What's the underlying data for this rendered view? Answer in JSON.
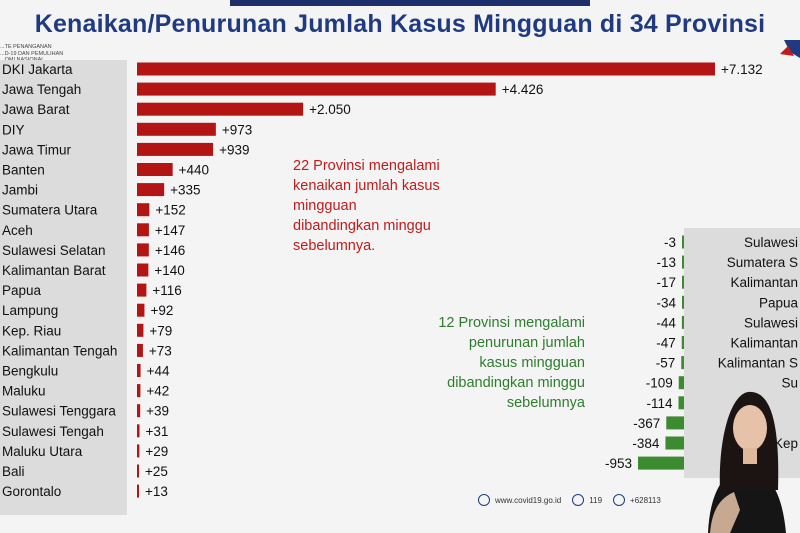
{
  "title": "Kenaikan/Penurunan Jumlah Kasus Mingguan di 34 Provinsi",
  "org_text": [
    "...TE PENANGANAN",
    "...D-19 DAN PEMULIHAN",
    "...OMI NASIONAL"
  ],
  "notes": {
    "increase": [
      "22 Provinsi mengalami",
      "kenaikan jumlah kasus",
      "mingguan",
      "dibandingkan minggu",
      "sebelumnya."
    ],
    "decrease": [
      "12 Provinsi mengalami",
      "penurunan jumlah",
      "kasus mingguan",
      "dibandingkan minggu",
      "sebelumnya"
    ]
  },
  "footer": {
    "website": "www.covid19.go.id",
    "hotline": "119",
    "phone": "+628113"
  },
  "colors": {
    "increase": "#b31515",
    "decrease": "#3d8b30",
    "title": "#1f3a80"
  },
  "chart_data": [
    {
      "type": "bar",
      "orientation": "horizontal",
      "categories": [
        "DKI Jakarta",
        "Jawa Tengah",
        "Jawa Barat",
        "DIY",
        "Jawa Timur",
        "Banten",
        "Jambi",
        "Sumatera Utara",
        "Aceh",
        "Sulawesi Selatan",
        "Kalimantan Barat",
        "Papua",
        "Lampung",
        "Kep. Riau",
        "Kalimantan Tengah",
        "Bengkulu",
        "Maluku",
        "Sulawesi Tenggara",
        "Sulawesi Tengah",
        "Maluku Utara",
        "Bali",
        "Gorontalo"
      ],
      "category_labels_shown": [
        "DKI Jakarta",
        "Jawa Tengah",
        "Jawa Barat",
        "DIY",
        "Jawa Timur",
        "Banten",
        "Jambi",
        "Sumatera Utara",
        "Aceh",
        "Sulawesi Selatan",
        "Kalimantan Barat",
        "Papua",
        "Lampung",
        "Kep. Riau",
        "Kalimantan Tengah",
        "Bengkulu",
        "Maluku",
        "Sulawesi Tenggara",
        "Sulawesi Tengah",
        "Maluku Utara",
        "Bali",
        "Gorontalo"
      ],
      "values": [
        7132,
        4426,
        2050,
        973,
        939,
        440,
        335,
        152,
        147,
        146,
        140,
        116,
        92,
        79,
        73,
        44,
        42,
        39,
        31,
        29,
        25,
        13
      ],
      "value_labels": [
        "+7.132",
        "+4.426",
        "+2.050",
        "+973",
        "+939",
        "+440",
        "+335",
        "+152",
        "+147",
        "+146",
        "+140",
        "+116",
        "+92",
        "+79",
        "+73",
        "+44",
        "+42",
        "+39",
        "+31",
        "+29",
        "+25",
        "+13"
      ]
    },
    {
      "type": "bar",
      "orientation": "horizontal",
      "category_labels_shown": [
        "Sulawesi",
        "Sumatera S",
        "Kalimantan",
        "Papua",
        "Sulawesi",
        "Kalimantan",
        "Kalimantan S",
        "Su",
        "",
        "",
        "Kep",
        ""
      ],
      "values": [
        -3,
        -13,
        -17,
        -34,
        -44,
        -47,
        -57,
        -109,
        -114,
        -367,
        -384,
        -953
      ],
      "value_labels": [
        "-3",
        "-13",
        "-17",
        "-34",
        "-44",
        "-47",
        "-57",
        "-109",
        "-114",
        "-367",
        "-384",
        "-953"
      ]
    }
  ]
}
